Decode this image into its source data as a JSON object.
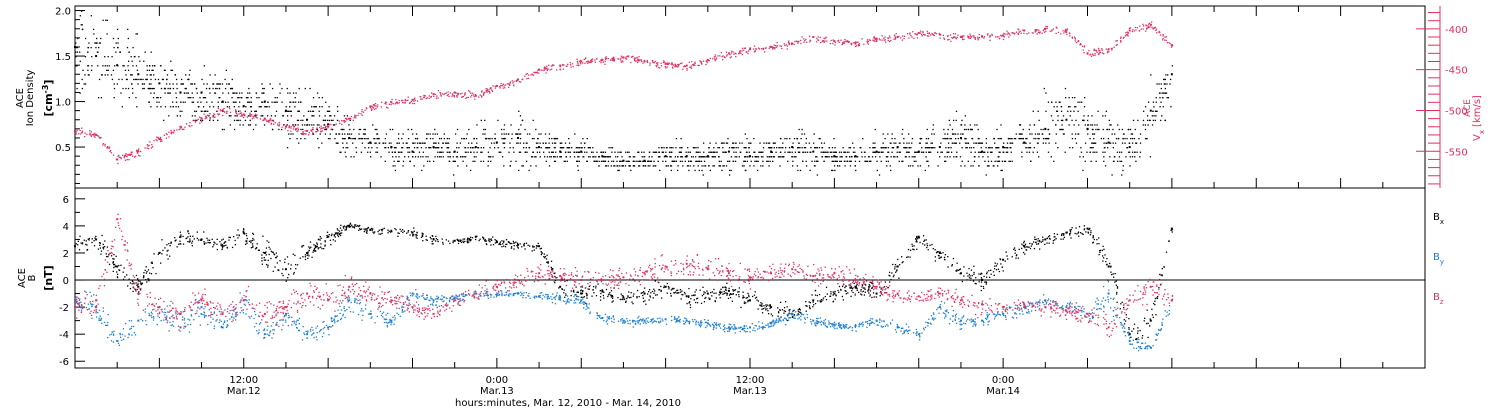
{
  "chart_data": [
    {
      "type": "scatter",
      "panel": "top",
      "left_axis": {
        "label_lines": [
          "ACE",
          "Ion Density"
        ],
        "unit_base": "[cm",
        "unit_sup": "-3",
        "unit_end": "]",
        "ylim": [
          0.05,
          2.05
        ],
        "ticks": [
          0.5,
          1.0,
          1.5,
          2.0
        ],
        "tick_labels": [
          "0.5",
          "1.0",
          "1.5",
          "2.0"
        ],
        "color": "#000000"
      },
      "right_axis": {
        "label_sup": "ACE",
        "label_base": "V",
        "label_sub": "x",
        "unit": "[km/s]",
        "ylim": [
          -595,
          -372
        ],
        "ticks": [
          -400,
          -450,
          -500,
          -550
        ],
        "tick_labels": [
          "-400",
          "-450",
          "-500",
          "-550"
        ],
        "color": "#e0305e"
      },
      "series": [
        {
          "color": "#000000",
          "level_step": 0.05,
          "x": [
            0,
            1,
            2,
            3,
            4,
            5,
            6,
            7,
            8,
            9,
            10,
            11,
            12,
            13,
            14,
            15,
            16,
            17,
            18,
            19,
            20,
            21,
            22,
            23,
            24,
            25,
            26,
            27,
            28,
            29,
            30,
            31,
            32,
            33,
            34,
            35,
            36,
            37,
            38,
            39,
            40,
            41,
            42,
            43,
            44,
            45,
            46,
            47,
            48,
            49,
            50,
            51,
            52
          ],
          "values": [
            1.6,
            1.5,
            1.4,
            1.3,
            1.2,
            1.1,
            1.1,
            1.0,
            0.95,
            1.0,
            0.9,
            0.8,
            0.75,
            0.6,
            0.55,
            0.5,
            0.45,
            0.5,
            0.45,
            0.5,
            0.55,
            0.6,
            0.5,
            0.45,
            0.45,
            0.4,
            0.35,
            0.35,
            0.4,
            0.4,
            0.4,
            0.45,
            0.4,
            0.45,
            0.5,
            0.45,
            0.4,
            0.4,
            0.45,
            0.5,
            0.45,
            0.5,
            0.6,
            0.45,
            0.5,
            0.55,
            0.7,
            0.8,
            0.7,
            0.55,
            0.5,
            0.9,
            1.3
          ],
          "spread": [
            0.45,
            0.4,
            0.4,
            0.35,
            0.3,
            0.3,
            0.3,
            0.3,
            0.25,
            0.3,
            0.3,
            0.3,
            0.25,
            0.25,
            0.2,
            0.2,
            0.2,
            0.2,
            0.2,
            0.2,
            0.25,
            0.3,
            0.2,
            0.15,
            0.15,
            0.1,
            0.1,
            0.1,
            0.15,
            0.15,
            0.15,
            0.2,
            0.15,
            0.15,
            0.2,
            0.2,
            0.15,
            0.15,
            0.2,
            0.2,
            0.2,
            0.25,
            0.3,
            0.2,
            0.25,
            0.25,
            0.35,
            0.4,
            0.35,
            0.25,
            0.25,
            0.35,
            0.3
          ]
        },
        {
          "color": "#e0305e",
          "axis": "right",
          "x": [
            0,
            1,
            2,
            3,
            4,
            5,
            6,
            7,
            8,
            9,
            10,
            11,
            12,
            13,
            14,
            15,
            16,
            17,
            18,
            19,
            20,
            21,
            22,
            23,
            24,
            25,
            26,
            27,
            28,
            29,
            30,
            31,
            32,
            33,
            34,
            35,
            36,
            37,
            38,
            39,
            40,
            41,
            42,
            43,
            44,
            45,
            46,
            47,
            48,
            49,
            50,
            51,
            52
          ],
          "values": [
            -525,
            -530,
            -560,
            -550,
            -535,
            -520,
            -510,
            -500,
            -505,
            -510,
            -520,
            -525,
            -520,
            -510,
            -495,
            -490,
            -487,
            -480,
            -478,
            -482,
            -470,
            -462,
            -450,
            -445,
            -440,
            -438,
            -435,
            -440,
            -443,
            -445,
            -438,
            -430,
            -425,
            -422,
            -418,
            -410,
            -415,
            -418,
            -412,
            -410,
            -405,
            -407,
            -410,
            -409,
            -408,
            -402,
            -400,
            -402,
            -430,
            -425,
            -402,
            -395,
            -420
          ]
        }
      ]
    },
    {
      "type": "scatter",
      "panel": "bottom",
      "left_axis": {
        "label_lines": [
          "ACE",
          "B"
        ],
        "unit": "[nT]",
        "ylim": [
          -6.5,
          6.8
        ],
        "ticks": [
          -6,
          -4,
          -2,
          0,
          2,
          4,
          6
        ],
        "tick_labels": [
          "-6",
          "-4",
          "-2",
          "0",
          "2",
          "4",
          "6"
        ]
      },
      "zero_line": 0,
      "series": [
        {
          "name_base": "B",
          "name_sub": "x",
          "color": "#000000",
          "x": [
            0,
            1,
            2,
            3,
            4,
            5,
            6,
            7,
            8,
            9,
            10,
            11,
            12,
            13,
            14,
            15,
            16,
            17,
            18,
            19,
            20,
            21,
            22,
            23,
            24,
            25,
            26,
            27,
            28,
            29,
            30,
            31,
            32,
            33,
            34,
            35,
            36,
            37,
            38,
            39,
            40,
            41,
            42,
            43,
            44,
            45,
            46,
            47,
            48,
            49,
            50,
            51,
            52
          ],
          "values": [
            2.5,
            3.0,
            1.0,
            -0.5,
            2.0,
            3.2,
            3.0,
            2.5,
            3.5,
            2.0,
            0.8,
            2.0,
            3.2,
            4.0,
            3.7,
            3.6,
            3.5,
            3.0,
            2.9,
            3.2,
            2.8,
            2.6,
            2.5,
            -0.5,
            -1.0,
            -0.8,
            -1.3,
            -1.0,
            -0.5,
            -1.2,
            -1.0,
            -0.8,
            -1.5,
            -2.0,
            -2.5,
            -1.5,
            -1.0,
            -0.5,
            -1.0,
            1.0,
            3.2,
            2.0,
            0.5,
            0.0,
            1.5,
            2.5,
            3.0,
            3.5,
            3.8,
            1.0,
            -4.0,
            -3.0,
            3.8
          ],
          "spread": [
            0.6,
            0.6,
            0.8,
            0.8,
            0.9,
            0.6,
            0.6,
            0.7,
            0.6,
            1.0,
            1.0,
            0.8,
            0.5,
            0.3,
            0.3,
            0.3,
            0.3,
            0.3,
            0.3,
            0.3,
            0.3,
            0.3,
            0.3,
            0.6,
            0.6,
            0.6,
            0.6,
            0.6,
            0.5,
            0.6,
            0.6,
            0.6,
            0.6,
            0.6,
            0.6,
            0.6,
            0.6,
            0.6,
            0.6,
            0.8,
            0.5,
            0.7,
            0.7,
            0.7,
            0.7,
            0.6,
            0.5,
            0.5,
            0.5,
            1.0,
            0.8,
            1.5,
            0.3
          ]
        },
        {
          "name_base": "B",
          "name_sub": "y",
          "color": "#1b7fd4",
          "x": [
            0,
            1,
            2,
            3,
            4,
            5,
            6,
            7,
            8,
            9,
            10,
            11,
            12,
            13,
            14,
            15,
            16,
            17,
            18,
            19,
            20,
            21,
            22,
            23,
            24,
            25,
            26,
            27,
            28,
            29,
            30,
            31,
            32,
            33,
            34,
            35,
            36,
            37,
            38,
            39,
            40,
            41,
            42,
            43,
            44,
            45,
            46,
            47,
            48,
            49,
            50,
            51,
            52
          ],
          "values": [
            -1.5,
            -2.0,
            -4.5,
            -3.0,
            -2.0,
            -3.5,
            -2.0,
            -3.5,
            -1.5,
            -4.0,
            -2.5,
            -4.0,
            -3.5,
            -1.5,
            -2.5,
            -3.0,
            -1.0,
            -1.5,
            -1.3,
            -1.0,
            -1.1,
            -1.0,
            -1.2,
            -1.3,
            -1.5,
            -2.8,
            -3.0,
            -3.0,
            -2.9,
            -3.0,
            -3.2,
            -3.5,
            -3.5,
            -3.2,
            -2.5,
            -3.0,
            -3.3,
            -3.4,
            -3.0,
            -3.5,
            -4.0,
            -2.0,
            -3.0,
            -3.0,
            -2.5,
            -2.0,
            -1.5,
            -2.0,
            -2.5,
            -1.0,
            -4.5,
            -5.0,
            -1.5
          ],
          "spread": [
            0.9,
            1.0,
            0.6,
            0.9,
            1.0,
            0.9,
            1.0,
            0.9,
            1.0,
            0.7,
            0.9,
            0.7,
            0.6,
            0.9,
            0.6,
            0.6,
            0.5,
            0.4,
            0.3,
            0.3,
            0.3,
            0.3,
            0.3,
            0.4,
            0.4,
            0.3,
            0.3,
            0.3,
            0.3,
            0.3,
            0.3,
            0.3,
            0.3,
            0.3,
            0.4,
            0.4,
            0.3,
            0.3,
            0.4,
            0.4,
            0.4,
            0.6,
            0.5,
            0.5,
            0.5,
            0.5,
            0.5,
            0.5,
            0.5,
            1.2,
            0.6,
            0.3,
            0.4
          ]
        },
        {
          "name_base": "B",
          "name_sub": "z",
          "color": "#e0305e",
          "x": [
            0,
            1,
            2,
            3,
            4,
            5,
            6,
            7,
            8,
            9,
            10,
            11,
            12,
            13,
            14,
            15,
            16,
            17,
            18,
            19,
            20,
            21,
            22,
            23,
            24,
            25,
            26,
            27,
            28,
            29,
            30,
            31,
            32,
            33,
            34,
            35,
            36,
            37,
            38,
            39,
            40,
            41,
            42,
            43,
            44,
            45,
            46,
            47,
            48,
            49,
            50,
            51,
            52
          ],
          "values": [
            -2.0,
            -1.5,
            4.5,
            -1.0,
            -2.0,
            -2.5,
            -1.5,
            -2.5,
            -1.5,
            -2.5,
            -2.0,
            -1.0,
            -1.5,
            -0.5,
            -1.0,
            -1.5,
            -2.0,
            -2.5,
            -1.5,
            -1.0,
            -0.5,
            0.0,
            0.5,
            0.3,
            0.0,
            0.0,
            0.2,
            0.5,
            1.0,
            1.2,
            0.8,
            0.5,
            0.2,
            0.5,
            0.8,
            0.3,
            0.5,
            0.0,
            -0.5,
            -1.0,
            -1.2,
            -1.0,
            -1.5,
            -1.8,
            -2.0,
            -1.8,
            -2.0,
            -2.3,
            -2.5,
            -3.5,
            -1.5,
            -0.5,
            -1.5
          ],
          "spread": [
            0.9,
            1.0,
            0.7,
            1.0,
            0.9,
            0.9,
            1.0,
            0.9,
            1.0,
            0.9,
            0.9,
            1.0,
            0.9,
            0.9,
            0.7,
            0.6,
            0.6,
            0.5,
            0.6,
            0.6,
            0.6,
            0.6,
            0.6,
            0.7,
            0.7,
            0.7,
            0.7,
            0.8,
            0.8,
            0.8,
            0.8,
            0.8,
            0.7,
            0.7,
            0.7,
            0.7,
            0.8,
            0.8,
            0.7,
            0.6,
            0.6,
            0.6,
            0.6,
            0.6,
            0.5,
            0.5,
            0.6,
            0.6,
            0.6,
            0.8,
            0.7,
            0.8,
            0.5
          ]
        }
      ]
    }
  ],
  "x_axis": {
    "xlim": [
      0,
      64
    ],
    "tick_step": 2,
    "labels": [
      {
        "x": 8,
        "line1": "12:00",
        "line2": "Mar.12"
      },
      {
        "x": 20,
        "line1": "0:00",
        "line2": "Mar.13"
      },
      {
        "x": 32,
        "line1": "12:00",
        "line2": "Mar.13"
      },
      {
        "x": 44,
        "line1": "0:00",
        "line2": "Mar.14"
      }
    ],
    "title": "hours:minutes, Mar. 12, 2010 - Mar. 14, 2010",
    "data_end": 52
  },
  "colors": {
    "black": "#000000",
    "pink": "#e0305e",
    "blue": "#1b7fd4"
  }
}
